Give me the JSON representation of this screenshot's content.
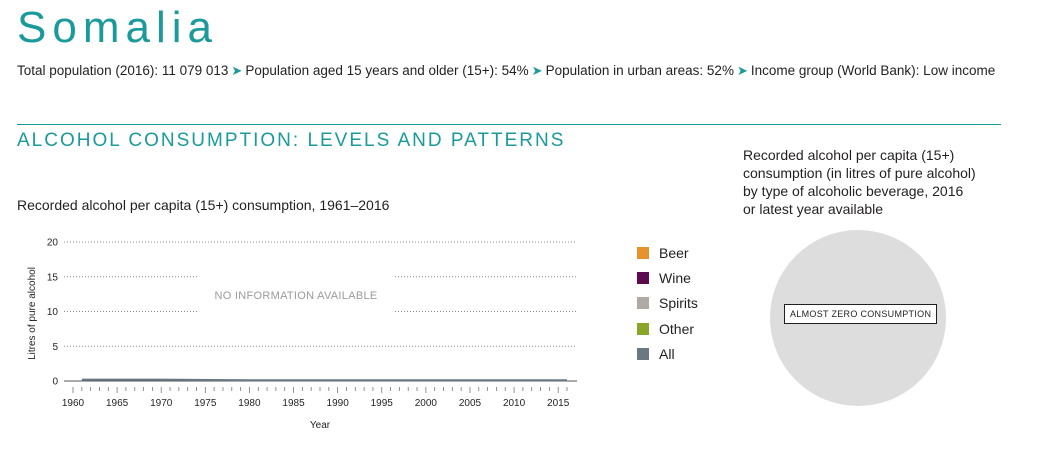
{
  "header": {
    "country": "Somalia",
    "facts": [
      "Total population (2016): 11 079 013",
      "Population aged 15 years and older (15+): 54%",
      "Population in urban areas: 52%",
      "Income group (World Bank): Low income"
    ],
    "arrow": "➤"
  },
  "section_title": "ALCOHOL CONSUMPTION: LEVELS AND PATTERNS",
  "pie_panel": {
    "title_lines": [
      "Recorded alcohol per capita (15+)",
      "consumption (in litres of pure alcohol)",
      "by type of alcoholic beverage, 2016",
      "or latest year available"
    ],
    "label": "ALMOST ZERO CONSUMPTION"
  },
  "chart_data": {
    "type": "area",
    "title": "Recorded alcohol per capita (15+) consumption, 1961–2016",
    "xlabel": "Year",
    "ylabel": "Litres of pure alcohol",
    "xlim": [
      1960,
      2016
    ],
    "ylim": [
      0,
      20
    ],
    "yticks": [
      0,
      5,
      10,
      15,
      20
    ],
    "xticks": [
      1960,
      1965,
      1970,
      1975,
      1980,
      1985,
      1990,
      1995,
      2000,
      2005,
      2010,
      2015
    ],
    "grid": "horizontal dotted",
    "annotation": "NO INFORMATION AVAILABLE",
    "legend_position": "right",
    "series": [
      {
        "name": "Beer",
        "color": "#e8922e"
      },
      {
        "name": "Wine",
        "color": "#5b0b4e"
      },
      {
        "name": "Spirits",
        "color": "#b1aaa4"
      },
      {
        "name": "Other",
        "color": "#8aa629"
      },
      {
        "name": "All",
        "color": "#6a7884"
      }
    ],
    "all_values": {
      "x": [
        1961,
        1970,
        1980,
        1990,
        2000,
        2010,
        2016
      ],
      "y": [
        0.2,
        0.2,
        0.1,
        0.1,
        0.1,
        0.1,
        0.1
      ]
    }
  }
}
